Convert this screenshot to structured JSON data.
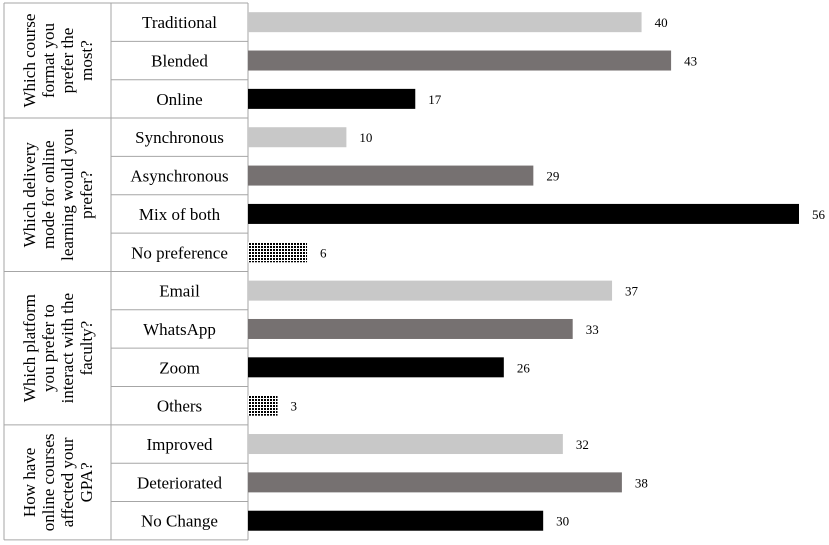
{
  "chart_data": {
    "type": "bar",
    "orientation": "horizontal",
    "xlim": [
      0,
      56
    ],
    "grid": false,
    "legend": "none",
    "groups": [
      {
        "label": [
          "Which course",
          "format you",
          "prefer the",
          "most?"
        ],
        "categories": [
          "Traditional",
          "Blended",
          "Online"
        ],
        "values": [
          40,
          43,
          17
        ],
        "fills": [
          "light-gray",
          "dark-gray",
          "black"
        ]
      },
      {
        "label": [
          "Which delivery",
          "mode for online",
          "learning would you",
          "prefer?"
        ],
        "categories": [
          "Synchronous",
          "Asynchronous",
          "Mix of both",
          "No preference"
        ],
        "values": [
          10,
          29,
          56,
          6
        ],
        "fills": [
          "light-gray",
          "dark-gray",
          "black",
          "dotted"
        ]
      },
      {
        "label": [
          "Which platform",
          "you prefer to",
          "interact with the",
          "faculty?"
        ],
        "categories": [
          "Email",
          "WhatsApp",
          "Zoom",
          "Others"
        ],
        "values": [
          37,
          33,
          26,
          3
        ],
        "fills": [
          "light-gray",
          "dark-gray",
          "black",
          "dotted"
        ]
      },
      {
        "label": [
          "How have",
          "online courses",
          "affected your",
          "GPA?"
        ],
        "categories": [
          "Improved",
          "Deteriorated",
          "No Change"
        ],
        "values": [
          32,
          38,
          30
        ],
        "fills": [
          "light-gray",
          "dark-gray",
          "black"
        ]
      }
    ]
  },
  "colors": {
    "light-gray": "#c8c8c8",
    "dark-gray": "#767171",
    "black": "#000000",
    "axis": "#a6a6a6"
  }
}
